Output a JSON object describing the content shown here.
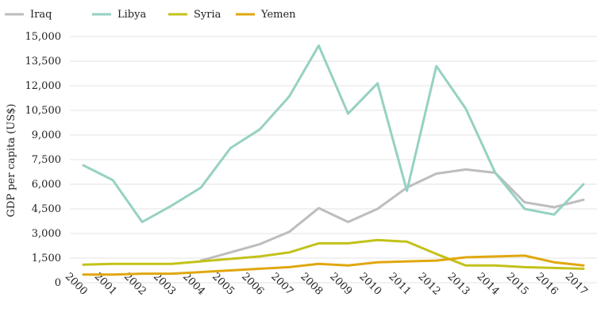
{
  "chart_data": {
    "type": "line",
    "title": "",
    "xlabel": "",
    "ylabel": "GDP per capita (US$)",
    "ylim": [
      0,
      15000
    ],
    "yticks": [
      0,
      1500,
      3000,
      4500,
      6000,
      7500,
      9000,
      10500,
      12000,
      13500,
      15000
    ],
    "ytick_labels": [
      "0",
      "1,500",
      "3,000",
      "4,500",
      "6,000",
      "7,500",
      "9,000",
      "10,500",
      "12,000",
      "13,500",
      "15,000"
    ],
    "x": [
      "2000",
      "2001",
      "2002",
      "2003",
      "2004",
      "2005",
      "2006",
      "2007",
      "2008",
      "2009",
      "2010",
      "2011",
      "2012",
      "2013",
      "2014",
      "2015",
      "2016",
      "2017"
    ],
    "grid": "horizontal",
    "legend_position": "top-left",
    "series": [
      {
        "name": "Iraq",
        "color": "#bdbdbd",
        "values": [
          null,
          null,
          null,
          null,
          1350,
          1850,
          2350,
          3100,
          4550,
          3700,
          4500,
          5800,
          6650,
          6900,
          6700,
          4900,
          4600,
          5050
        ]
      },
      {
        "name": "Libya",
        "color": "#96d1c3",
        "values": [
          7150,
          6250,
          3700,
          4700,
          5800,
          8200,
          9350,
          11350,
          14450,
          10300,
          12150,
          5600,
          13200,
          10600,
          6700,
          4500,
          4150,
          6000
        ]
      },
      {
        "name": "Syria",
        "color": "#c2c21a",
        "values": [
          1100,
          1150,
          1150,
          1150,
          1300,
          1450,
          1600,
          1850,
          2400,
          2400,
          2600,
          2500,
          1750,
          1050,
          1050,
          950,
          900,
          850
        ]
      },
      {
        "name": "Yemen",
        "color": "#e0a70f",
        "values": [
          500,
          500,
          550,
          550,
          650,
          750,
          850,
          950,
          1150,
          1050,
          1250,
          1300,
          1350,
          1550,
          1600,
          1650,
          1250,
          1050
        ]
      }
    ]
  }
}
